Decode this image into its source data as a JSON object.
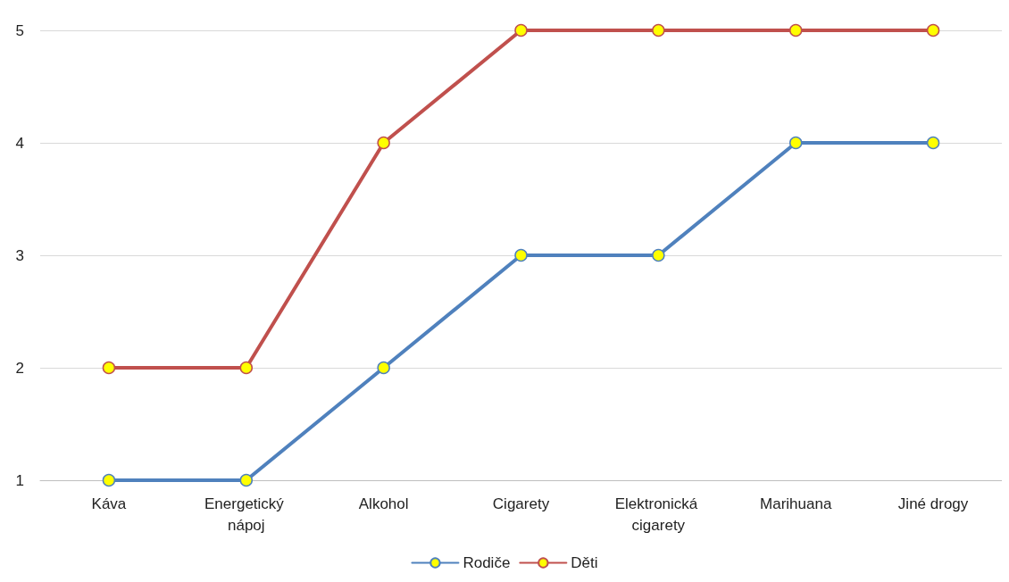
{
  "chart_data": {
    "type": "line",
    "categories": [
      "Káva",
      "Energetický nápoj",
      "Alkohol",
      "Cigarety",
      "Elektronická cigarety",
      "Marihuana",
      "Jiné drogy"
    ],
    "series": [
      {
        "name": "Rodiče",
        "color": "#4f81bd",
        "values": [
          1,
          1,
          2,
          3,
          3,
          4,
          4
        ]
      },
      {
        "name": "Děti",
        "color": "#c0504d",
        "values": [
          2,
          2,
          4,
          5,
          5,
          5,
          5
        ]
      }
    ],
    "ylim": [
      1,
      5
    ],
    "yticks": [
      1,
      2,
      3,
      4,
      5
    ],
    "grid": "y",
    "legend": "bottom",
    "marker": "circle",
    "line_style": "solid"
  }
}
